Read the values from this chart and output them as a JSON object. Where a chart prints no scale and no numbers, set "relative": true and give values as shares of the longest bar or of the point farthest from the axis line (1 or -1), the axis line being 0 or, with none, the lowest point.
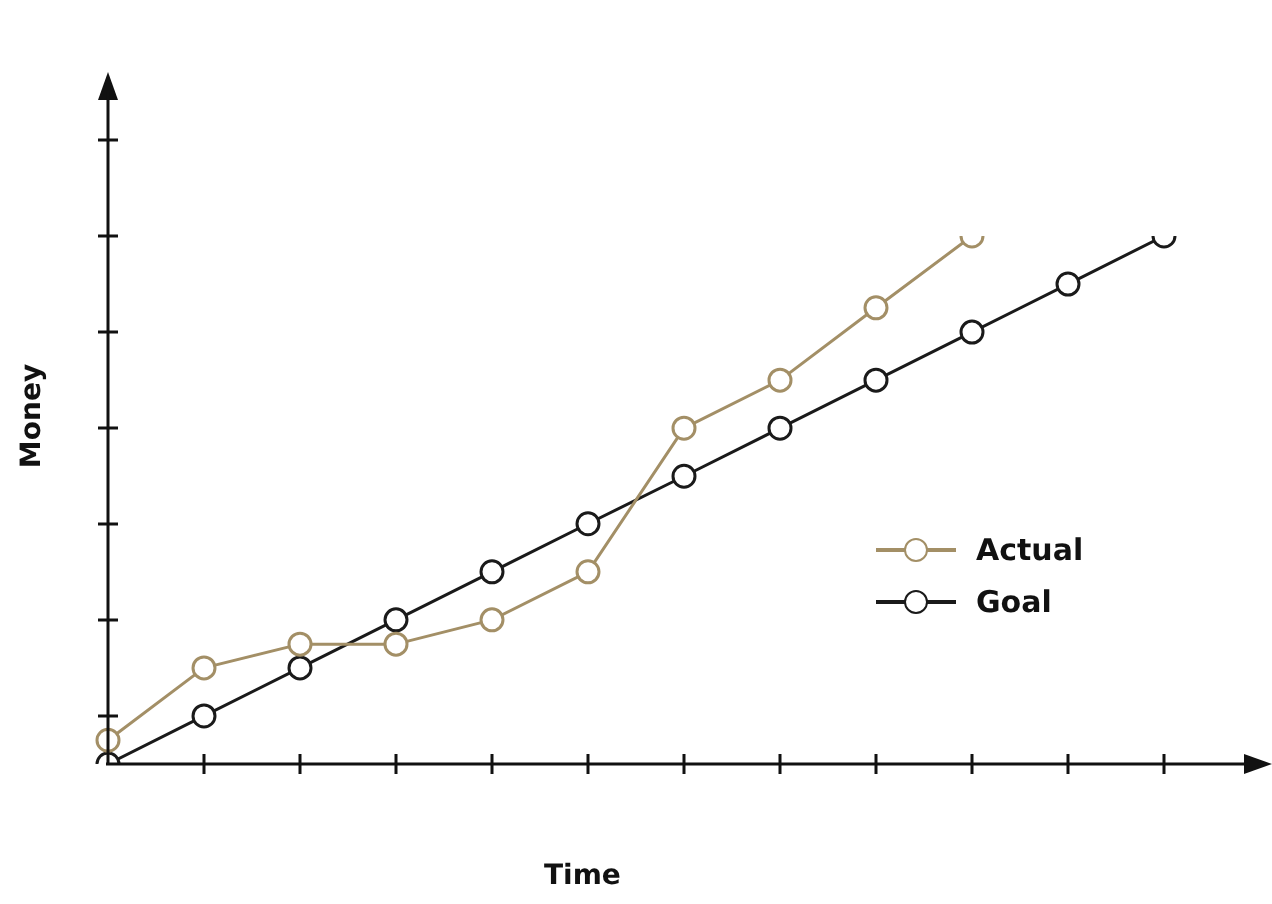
{
  "chart_data": {
    "type": "line",
    "relative": true,
    "xlabel": "Time",
    "ylabel": "Money",
    "categories": [
      null,
      null,
      null,
      null,
      null,
      null,
      null,
      null,
      null,
      null,
      null,
      null
    ],
    "series": [
      {
        "name": "Actual",
        "color": "#a38f66",
        "values": [
          0.045,
          0.182,
          0.227,
          0.227,
          0.273,
          0.364,
          0.636,
          0.727,
          0.864,
          1,
          null,
          null
        ]
      },
      {
        "name": "Goal",
        "color": "#1a1a1a",
        "values": [
          0,
          0.091,
          0.182,
          0.273,
          0.364,
          0.455,
          0.545,
          0.636,
          0.727,
          0.818,
          0.909,
          1
        ]
      }
    ],
    "marker": "circle",
    "line_style": "solid",
    "legend": "right"
  }
}
